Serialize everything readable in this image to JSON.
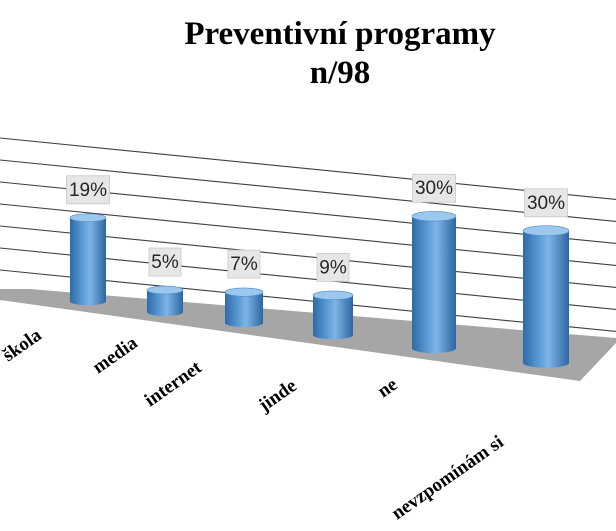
{
  "chart_data": {
    "type": "bar",
    "title": "Preventivní programy",
    "subtitle": "n/98",
    "categories": [
      "škola",
      "media",
      "internet",
      "jinde",
      "ne",
      "nevzpomínám si"
    ],
    "values": [
      19,
      5,
      7,
      9,
      30,
      30
    ],
    "data_labels": [
      "19%",
      "5%",
      "7%",
      "9%",
      "30%",
      "30%"
    ],
    "unit": "%",
    "ylim": [
      0,
      35
    ],
    "grid": true,
    "legend": "none",
    "style": "3d-cylinder",
    "colors": {
      "bar": "#5b9bd5",
      "bar_dark": "#2e6aa8",
      "bar_light": "#9cc8f0",
      "floor": "#a6a6a6",
      "gridline": "#404040",
      "label_bg": "#e6e6e6"
    }
  }
}
